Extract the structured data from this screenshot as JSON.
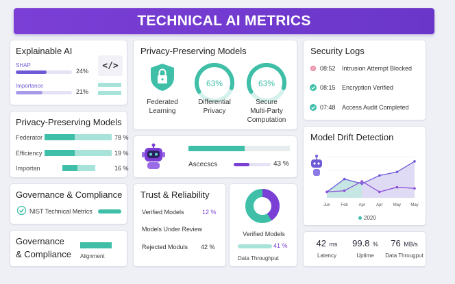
{
  "header": {
    "title": "TECHNICAL AI METRICS"
  },
  "explainable": {
    "title": "Explainable AI",
    "rows": [
      {
        "label": "SHAP",
        "value": "24%",
        "fraction": 0.55
      },
      {
        "label": "Importance",
        "value": "21%",
        "fraction": 0.48
      }
    ],
    "icon_text": "</>"
  },
  "privacy_left": {
    "title": "Privacy-Preserving Models",
    "rows": [
      {
        "label": "Federator",
        "value": "78 %"
      },
      {
        "label": "Efficiency",
        "value": "19 %"
      },
      {
        "label": "Importan",
        "value": "16 %"
      }
    ]
  },
  "governance1": {
    "title": "Governance & Compliance",
    "item": "NIST Technical Metrics"
  },
  "governance2": {
    "title_line1": "Governance",
    "title_line2": "& Compliance",
    "bar_label": "Alignment"
  },
  "privacy_center": {
    "title": "Privacy-Preserving Models",
    "federated": {
      "line1": "Federated",
      "line2": "Learning"
    },
    "differential": {
      "value": "63%",
      "line1": "Differential",
      "line2": "Privacy",
      "fraction": 0.63
    },
    "smpc": {
      "value": "63%",
      "line1": "Secure",
      "line2": "Multi-Party",
      "line3": "Computation",
      "fraction": 0.63
    }
  },
  "robot_card": {
    "label": "Ascecscs",
    "value": "43 %",
    "fraction": 0.43
  },
  "trust": {
    "title": "Trust & Reliability",
    "rows": [
      {
        "label": "Verified Models",
        "value": "12 %"
      },
      {
        "label": "Models Under Review",
        "value": ""
      },
      {
        "label": "Rejected Moduls",
        "value": "42 %"
      }
    ]
  },
  "donut_card": {
    "label": "Verified Models",
    "value": "41 %",
    "bar_label": "Data Throughput",
    "fraction": 0.41
  },
  "security": {
    "title": "Security Logs",
    "logs": [
      {
        "time": "08:52",
        "text": "Intrusion Attempt Blocked",
        "status": "blocked"
      },
      {
        "time": "08:15",
        "text": "Encryption Verified",
        "status": "ok"
      },
      {
        "time": "07:48",
        "text": "Access Audit Completed",
        "status": "ok"
      }
    ]
  },
  "drift": {
    "title": "Model Drift Detection",
    "legend": "2020"
  },
  "chart_data": {
    "type": "line",
    "categories": [
      "Jun",
      "Feb",
      "Apr",
      "Apr",
      "May",
      "May"
    ],
    "series": [
      {
        "values": [
          10,
          32,
          24,
          38,
          44,
          62
        ]
      },
      {
        "values": [
          10,
          12,
          28,
          10,
          18,
          16
        ]
      }
    ],
    "ylim": [
      0,
      70
    ]
  },
  "stats": [
    {
      "value": "42",
      "unit": "ms",
      "label": "Latency"
    },
    {
      "value": "99.8",
      "unit": "%",
      "label": "Uptime"
    },
    {
      "value": "76",
      "unit": "MB/s",
      "label": "Data Througput"
    }
  ],
  "colors": {
    "purple": "#6d5bd6",
    "teal": "#3fbfa8",
    "header": "#7b3fd6"
  }
}
